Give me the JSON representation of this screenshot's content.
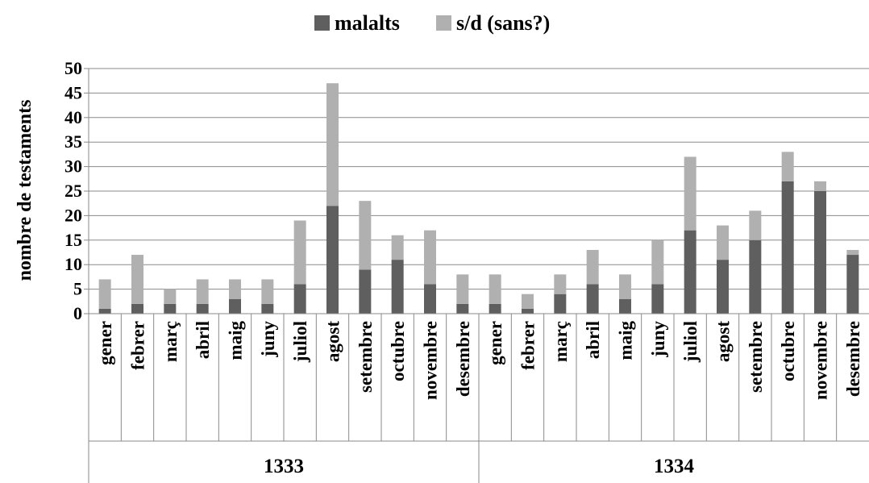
{
  "chart_data": {
    "type": "bar",
    "stacked": true,
    "ylabel": "nombre de testaments",
    "xlabel": "",
    "ylim": [
      0,
      50
    ],
    "yticks": [
      "0",
      "5",
      "10",
      "15",
      "20",
      "25",
      "30",
      "35",
      "40",
      "45",
      "50"
    ],
    "grid": true,
    "legend_position": "top",
    "categories": [
      "gener",
      "febrer",
      "març",
      "abril",
      "maig",
      "juny",
      "juliol",
      "agost",
      "setembre",
      "octubre",
      "novembre",
      "desembre",
      "gener",
      "febrer",
      "març",
      "abril",
      "maig",
      "juny",
      "juliol",
      "agost",
      "setembre",
      "octubre",
      "novembre",
      "desembre"
    ],
    "groups": [
      {
        "label": "1333",
        "count": 12
      },
      {
        "label": "1334",
        "count": 12
      }
    ],
    "series": [
      {
        "name": "malalts",
        "color": "#5f5f5f",
        "values": [
          1,
          2,
          2,
          2,
          3,
          2,
          6,
          22,
          9,
          11,
          6,
          2,
          2,
          1,
          4,
          6,
          3,
          6,
          17,
          11,
          15,
          27,
          25,
          12
        ]
      },
      {
        "name": "s/d (sans?)",
        "color": "#b0b0b0",
        "values": [
          6,
          10,
          3,
          5,
          4,
          5,
          13,
          25,
          14,
          5,
          11,
          6,
          6,
          3,
          4,
          7,
          5,
          9,
          15,
          7,
          6,
          6,
          2,
          1
        ]
      }
    ]
  }
}
